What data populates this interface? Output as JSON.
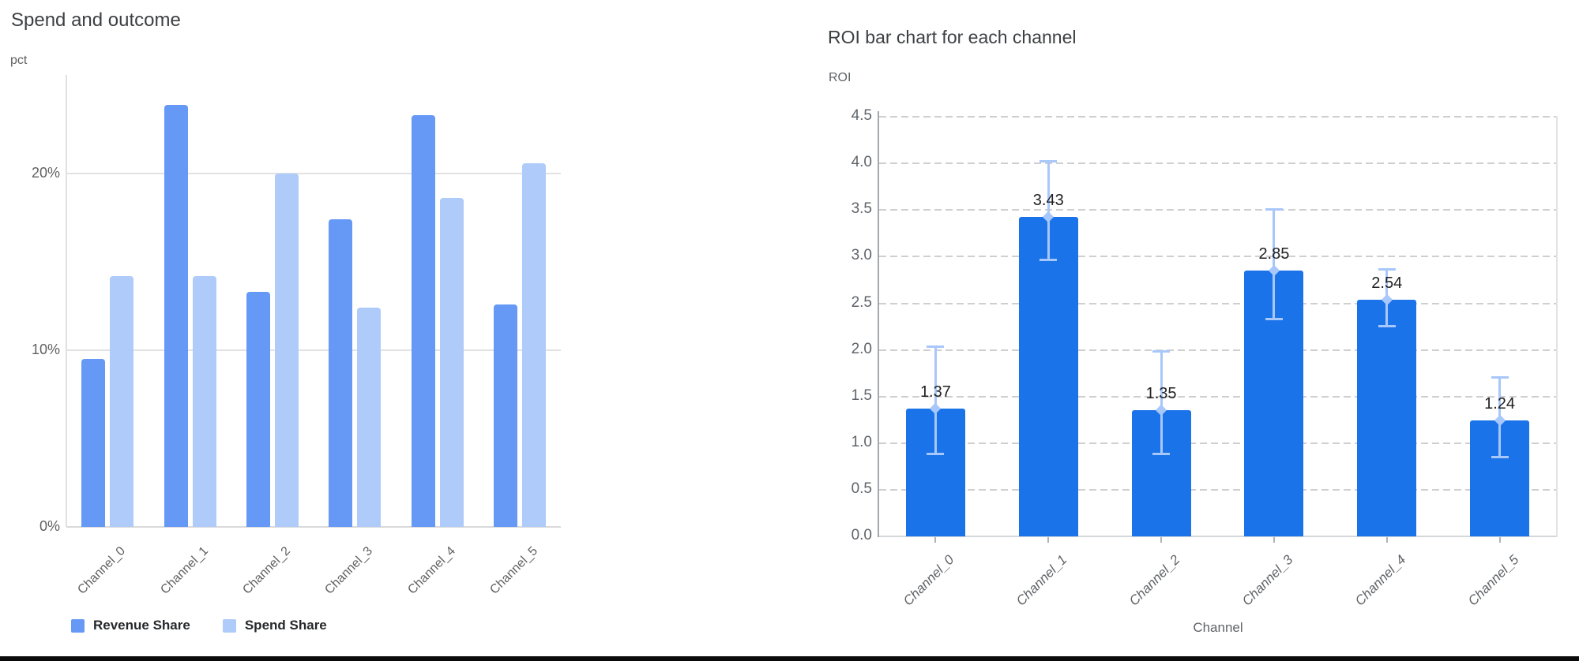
{
  "page": {
    "background": "#ffffff",
    "bottom_bar_color": "#0b0b0b"
  },
  "chart_data": [
    {
      "type": "bar",
      "title": "Spend and outcome",
      "ylabel": "pct",
      "xlabel": "",
      "categories": [
        "Channel_0",
        "Channel_1",
        "Channel_2",
        "Channel_3",
        "Channel_4",
        "Channel_5"
      ],
      "series": [
        {
          "name": "Revenue Share",
          "color": "#6699F5",
          "values": [
            9.5,
            23.9,
            13.3,
            17.4,
            23.3,
            12.6
          ]
        },
        {
          "name": "Spend Share",
          "color": "#AECBFA",
          "values": [
            14.2,
            14.2,
            20.0,
            12.4,
            18.6,
            20.6
          ]
        }
      ],
      "unit": "%",
      "y_ticks": [
        "0%",
        "10%",
        "20%"
      ],
      "y_tick_values": [
        0,
        10,
        20
      ],
      "ylim": [
        0,
        25.6
      ],
      "grid": "horizontal-solid",
      "legend_position": "bottom-left"
    },
    {
      "type": "bar",
      "title": "ROI bar chart for each channel",
      "ylabel": "ROI",
      "xlabel": "Channel",
      "categories": [
        "Channel_0",
        "Channel_1",
        "Channel_2",
        "Channel_3",
        "Channel_4",
        "Channel_5"
      ],
      "values": [
        1.37,
        3.43,
        1.35,
        2.85,
        2.54,
        1.24
      ],
      "bar_labels": [
        "1.37",
        "3.43",
        "1.35",
        "2.85",
        "2.54",
        "1.24"
      ],
      "error_low": [
        0.88,
        2.96,
        0.88,
        2.33,
        2.25,
        0.85
      ],
      "error_high": [
        2.04,
        4.03,
        1.99,
        3.51,
        2.87,
        1.71
      ],
      "bar_color": "#1A73E8",
      "error_color": "#A8C7FA",
      "y_ticks": [
        "0.0",
        "0.5",
        "1.0",
        "1.5",
        "2.0",
        "2.5",
        "3.0",
        "3.5",
        "4.0",
        "4.5"
      ],
      "y_tick_values": [
        0,
        0.5,
        1,
        1.5,
        2,
        2.5,
        3,
        3.5,
        4,
        4.5
      ],
      "ylim": [
        0,
        4.7
      ],
      "grid": "horizontal-dashed",
      "legend_position": "none"
    }
  ]
}
